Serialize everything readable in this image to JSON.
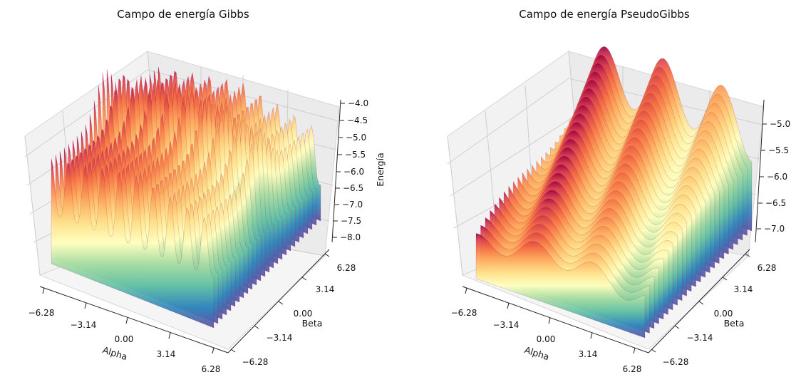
{
  "chart_data": [
    {
      "type": "surface3d",
      "title": "Campo de energía Gibbs",
      "xlabel": "Alpha",
      "ylabel": "Beta",
      "zlabel": "Energía",
      "x_ticks": [
        "−6.28",
        "−3.14",
        "0.00",
        "3.14",
        "6.28"
      ],
      "y_ticks": [
        "−6.28",
        "−3.14",
        "0.00",
        "3.14",
        "6.28"
      ],
      "z_ticks": [
        "−4.0",
        "−4.5",
        "−5.0",
        "−5.5",
        "−6.0",
        "−6.5",
        "−7.0",
        "−7.5",
        "−8.0"
      ],
      "xlim": [
        -6.28,
        6.28
      ],
      "ylim": [
        -6.28,
        6.28
      ],
      "zlim": [
        -8.2,
        -3.9
      ],
      "colormap": "Spectral_r"
    },
    {
      "type": "surface3d",
      "title": "Campo de energía PseudoGibbs",
      "xlabel": "Alpha",
      "ylabel": "Beta",
      "zlabel": "",
      "x_ticks": [
        "−6.28",
        "−3.14",
        "0.00",
        "3.14",
        "6.28"
      ],
      "y_ticks": [
        "−6.28",
        "−3.14",
        "0.00",
        "3.14",
        "6.28"
      ],
      "z_ticks": [
        "−5.0",
        "−5.5",
        "−6.0",
        "−6.5",
        "−7.0"
      ],
      "xlim": [
        -6.28,
        6.28
      ],
      "ylim": [
        -6.28,
        6.28
      ],
      "zlim": [
        -7.35,
        -4.55
      ],
      "colormap": "Spectral_r"
    }
  ]
}
